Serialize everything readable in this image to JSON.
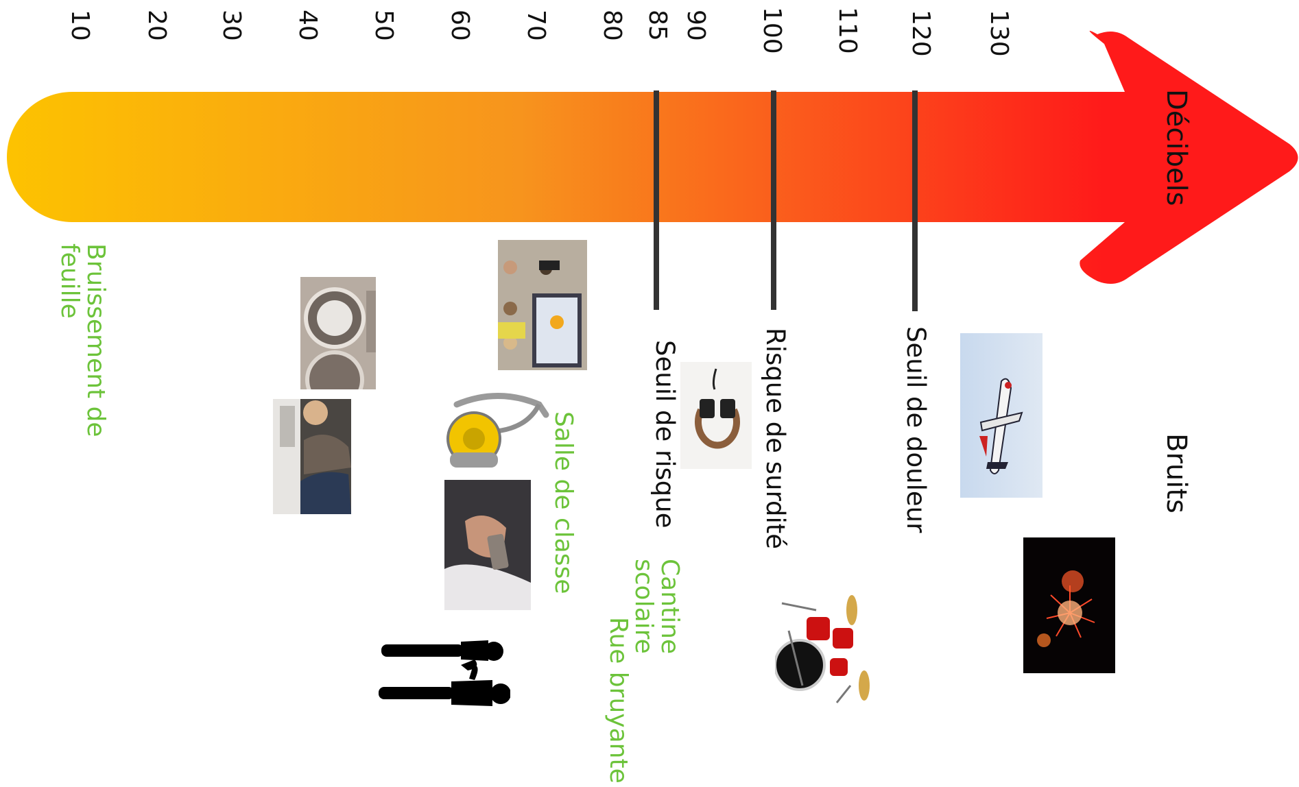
{
  "diagram": {
    "axis_title": "Décibels",
    "column_title": "Bruits",
    "ticks": [
      "10",
      "20",
      "30",
      "40",
      "50",
      "60",
      "70",
      "80",
      "85",
      "90",
      "100",
      "110",
      "120",
      "130"
    ],
    "thresholds": [
      {
        "label": "Seuil de risque"
      },
      {
        "label": "Risque de surdité"
      },
      {
        "label": "Seuil de douleur"
      }
    ],
    "sound_labels": [
      {
        "label": "Bruissement de\nfeuille"
      },
      {
        "label": "Salle de classe"
      },
      {
        "label": "Cantine\nscolaire"
      },
      {
        "label": "Rue bruyante"
      }
    ],
    "colors": {
      "arrow_start": "#fdc300",
      "arrow_mid": "#f7941d",
      "arrow_end": "#ff1a1a",
      "threshold_line": "#333333",
      "label_green": "#6cc33a"
    },
    "icons": [
      "washing-machine-photo",
      "people-talking-photo",
      "vacuum-cleaner-photo",
      "phone-hand-photo",
      "classroom-photo",
      "people-silhouettes",
      "headphones-photo",
      "drum-kit-photo",
      "airplane-photo",
      "fireworks-photo"
    ]
  }
}
